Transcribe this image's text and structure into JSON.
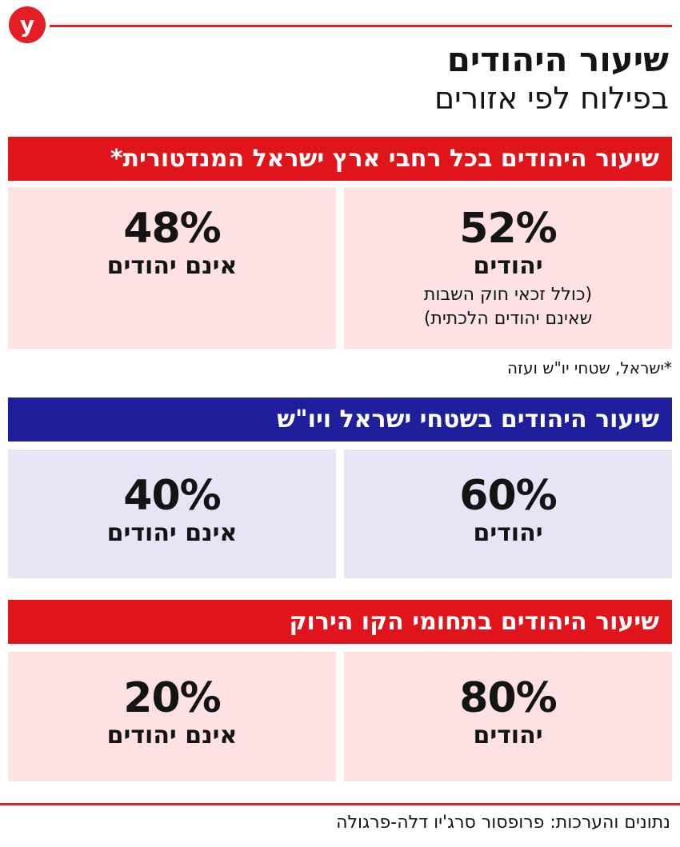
{
  "brand": {
    "logo_letter": "y",
    "accent_color": "#e31e24"
  },
  "header": {
    "title": "שיעור היהודים",
    "subtitle": "בפילוח לפי אזורים"
  },
  "sections": [
    {
      "title": "שיעור היהודים בכל רחבי ארץ ישראל המנדטורית*",
      "header_color": "#e0141b",
      "card_color": "#fde1e3",
      "jews": {
        "percent": "52%",
        "label": "יהודים",
        "note_line1": "(כולל זכאי חוק השבות",
        "note_line2": "שאינם יהודים הלכתית)"
      },
      "non_jews": {
        "percent": "48%",
        "label": "אינם יהודים"
      },
      "footnote": "*ישראל, שטחי יו\"ש ועזה"
    },
    {
      "title": "שיעור היהודים בשטחי ישראל ויו\"ש",
      "header_color": "#1f1f9c",
      "card_color": "#e5e5f5",
      "jews": {
        "percent": "60%",
        "label": "יהודים"
      },
      "non_jews": {
        "percent": "40%",
        "label": "אינם יהודים"
      }
    },
    {
      "title": "שיעור היהודים בתחומי הקו הירוק",
      "header_color": "#e0141b",
      "card_color": "#fde1e3",
      "jews": {
        "percent": "80%",
        "label": "יהודים"
      },
      "non_jews": {
        "percent": "20%",
        "label": "אינם יהודים"
      }
    }
  ],
  "source": "נתונים והערכות: פרופסור סרג'יו דלה-פרגולה"
}
